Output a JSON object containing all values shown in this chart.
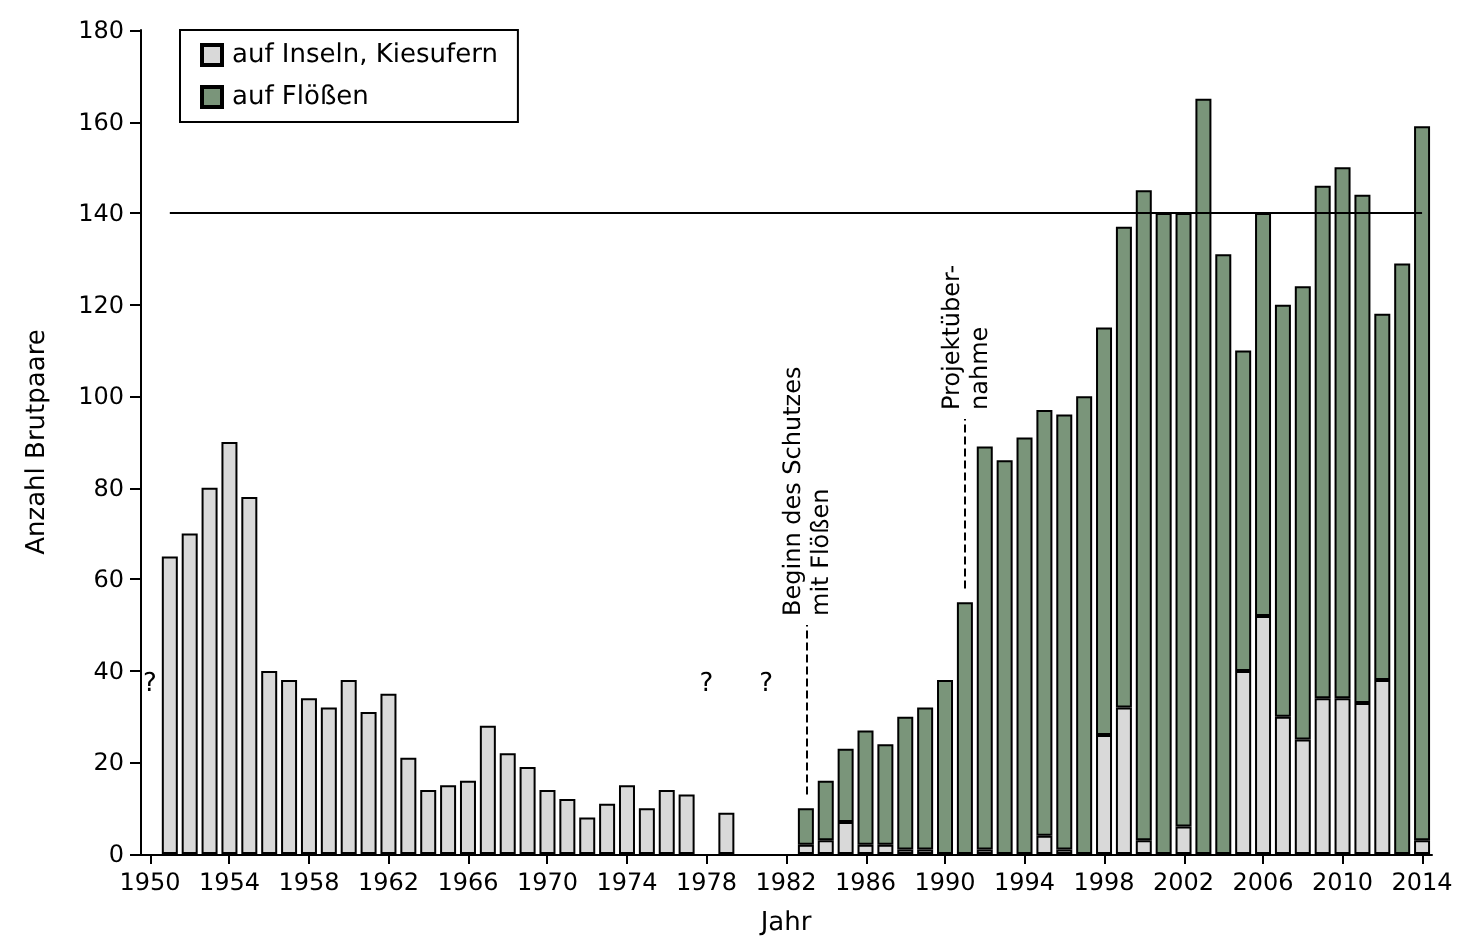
{
  "chart_data": {
    "type": "bar",
    "stacked": true,
    "xlabel": "Jahr",
    "ylabel": "Anzahl Brutpaare",
    "x": [
      1951,
      1952,
      1953,
      1954,
      1955,
      1956,
      1957,
      1958,
      1959,
      1960,
      1961,
      1962,
      1963,
      1964,
      1965,
      1966,
      1967,
      1968,
      1969,
      1970,
      1971,
      1972,
      1973,
      1974,
      1975,
      1976,
      1977,
      1978,
      1979,
      1980,
      1981,
      1982,
      1983,
      1984,
      1985,
      1986,
      1987,
      1988,
      1989,
      1990,
      1991,
      1992,
      1993,
      1994,
      1995,
      1996,
      1997,
      1998,
      1999,
      2000,
      2001,
      2002,
      2003,
      2004,
      2005,
      2006,
      2007,
      2008,
      2009,
      2010,
      2011,
      2012,
      2013,
      2014
    ],
    "series": [
      {
        "name": "auf Inseln, Kiesufern",
        "color": "#d9d9d9",
        "values": [
          65,
          70,
          80,
          90,
          78,
          40,
          38,
          34,
          32,
          38,
          31,
          35,
          21,
          14,
          15,
          16,
          28,
          22,
          19,
          14,
          12,
          8,
          11,
          15,
          10,
          14,
          13,
          null,
          9,
          null,
          null,
          null,
          2,
          3,
          7,
          2,
          2,
          1,
          1,
          null,
          null,
          1,
          null,
          null,
          4,
          1,
          null,
          26,
          32,
          3,
          null,
          6,
          null,
          null,
          40,
          52,
          30,
          25,
          34,
          34,
          33,
          38,
          null,
          3
        ]
      },
      {
        "name": "auf Flößen",
        "color": "#7a957a",
        "values": [
          null,
          null,
          null,
          null,
          null,
          null,
          null,
          null,
          null,
          null,
          null,
          null,
          null,
          null,
          null,
          null,
          null,
          null,
          null,
          null,
          null,
          null,
          null,
          null,
          null,
          null,
          null,
          null,
          null,
          null,
          null,
          null,
          8,
          13,
          16,
          25,
          22,
          29,
          31,
          38,
          55,
          88,
          86,
          91,
          93,
          95,
          100,
          89,
          105,
          142,
          140,
          134,
          165,
          131,
          70,
          88,
          90,
          99,
          112,
          116,
          111,
          80,
          129,
          156
        ]
      }
    ],
    "xlim": [
      1949.5,
      2014.5
    ],
    "xticks": [
      1950,
      1954,
      1958,
      1962,
      1966,
      1970,
      1974,
      1978,
      1982,
      1986,
      1990,
      1994,
      1998,
      2002,
      2006,
      2010,
      2014
    ],
    "ylim": [
      0,
      180
    ],
    "yticks": [
      0,
      20,
      40,
      60,
      80,
      100,
      120,
      140,
      160,
      180
    ],
    "grid": false,
    "legend": "top left",
    "ref_lines": [
      {
        "axis": "y",
        "value": 140,
        "color": "#000000",
        "line_style": "solid"
      },
      {
        "axis": "x",
        "value": 1983,
        "label": "Beginn des Schutzes\nmit Flößen",
        "color": "#000000",
        "line_style": "dashed"
      },
      {
        "axis": "x",
        "value": 1991,
        "label": "Projektüber-\nnahme",
        "color": "#000000",
        "line_style": "dashed"
      }
    ],
    "annotations": [
      "?",
      "?",
      "?"
    ]
  }
}
